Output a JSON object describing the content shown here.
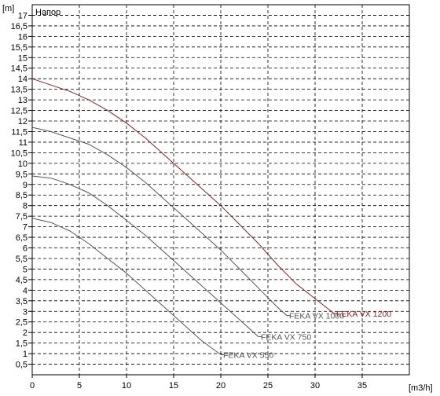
{
  "chart_data": {
    "type": "line",
    "title": "Напор",
    "xlabel": "[m3/h]",
    "ylabel": "[m]",
    "xlim": [
      0,
      40
    ],
    "ylim": [
      0,
      17.5
    ],
    "x_ticks": [
      0,
      5,
      10,
      15,
      20,
      25,
      30,
      35
    ],
    "y_ticks": [
      0.5,
      1,
      1.5,
      2,
      2.5,
      3,
      3.5,
      4,
      4.5,
      5,
      5.5,
      6,
      6.5,
      7,
      7.5,
      8,
      8.5,
      9,
      9.5,
      10,
      10.5,
      11,
      11.5,
      12,
      12.5,
      13,
      13.5,
      14,
      14.5,
      15,
      15.5,
      16,
      16.5,
      17
    ],
    "x_tick_labels": [
      "0",
      "5",
      "10",
      "15",
      "20",
      "25",
      "30",
      "35"
    ],
    "y_tick_labels": [
      "0,5",
      "1",
      "1,5",
      "2",
      "2,5",
      "3",
      "3,5",
      "4",
      "4,5",
      "5",
      "5,5",
      "6",
      "6,5",
      "7",
      "7,5",
      "8",
      "8,5",
      "9",
      "9,5",
      "10",
      "10,5",
      "11",
      "11,5",
      "12",
      "12,5",
      "13",
      "13,5",
      "14",
      "14,5",
      "15",
      "15,5",
      "16",
      "16,5",
      "17"
    ],
    "grid": true,
    "series": [
      {
        "name": "FEKA VX 550",
        "color": "#555555",
        "x": [
          0,
          2,
          4,
          6,
          8,
          10,
          12,
          14,
          16,
          18,
          20
        ],
        "y": [
          7.4,
          7.2,
          6.8,
          6.2,
          5.5,
          4.8,
          4.0,
          3.2,
          2.4,
          1.6,
          0.95
        ]
      },
      {
        "name": "FEKA VX 750",
        "color": "#555555",
        "x": [
          0,
          2,
          4,
          6,
          8,
          10,
          12,
          14,
          16,
          18,
          20,
          22,
          24
        ],
        "y": [
          9.4,
          9.3,
          9.0,
          8.6,
          8.0,
          7.3,
          6.6,
          5.8,
          5.0,
          4.2,
          3.4,
          2.6,
          1.8
        ]
      },
      {
        "name": "FEKA VX 1000",
        "color": "#555555",
        "x": [
          0,
          2,
          4,
          6,
          8,
          10,
          12,
          14,
          16,
          18,
          20,
          22,
          24,
          26,
          27
        ],
        "y": [
          11.7,
          11.5,
          11.2,
          10.9,
          10.4,
          9.8,
          9.1,
          8.3,
          7.5,
          6.7,
          5.9,
          5.0,
          4.1,
          3.2,
          2.8
        ]
      },
      {
        "name": "FEKA VX 1200",
        "color": "#8a2020",
        "x": [
          0,
          2,
          4,
          6,
          8,
          10,
          12,
          14,
          16,
          18,
          20,
          22,
          24,
          26,
          28,
          30,
          32
        ],
        "y": [
          14.0,
          13.7,
          13.4,
          13.0,
          12.5,
          11.9,
          11.2,
          10.4,
          9.6,
          8.8,
          8.0,
          7.1,
          6.2,
          5.2,
          4.3,
          3.6,
          2.9
        ]
      }
    ]
  }
}
